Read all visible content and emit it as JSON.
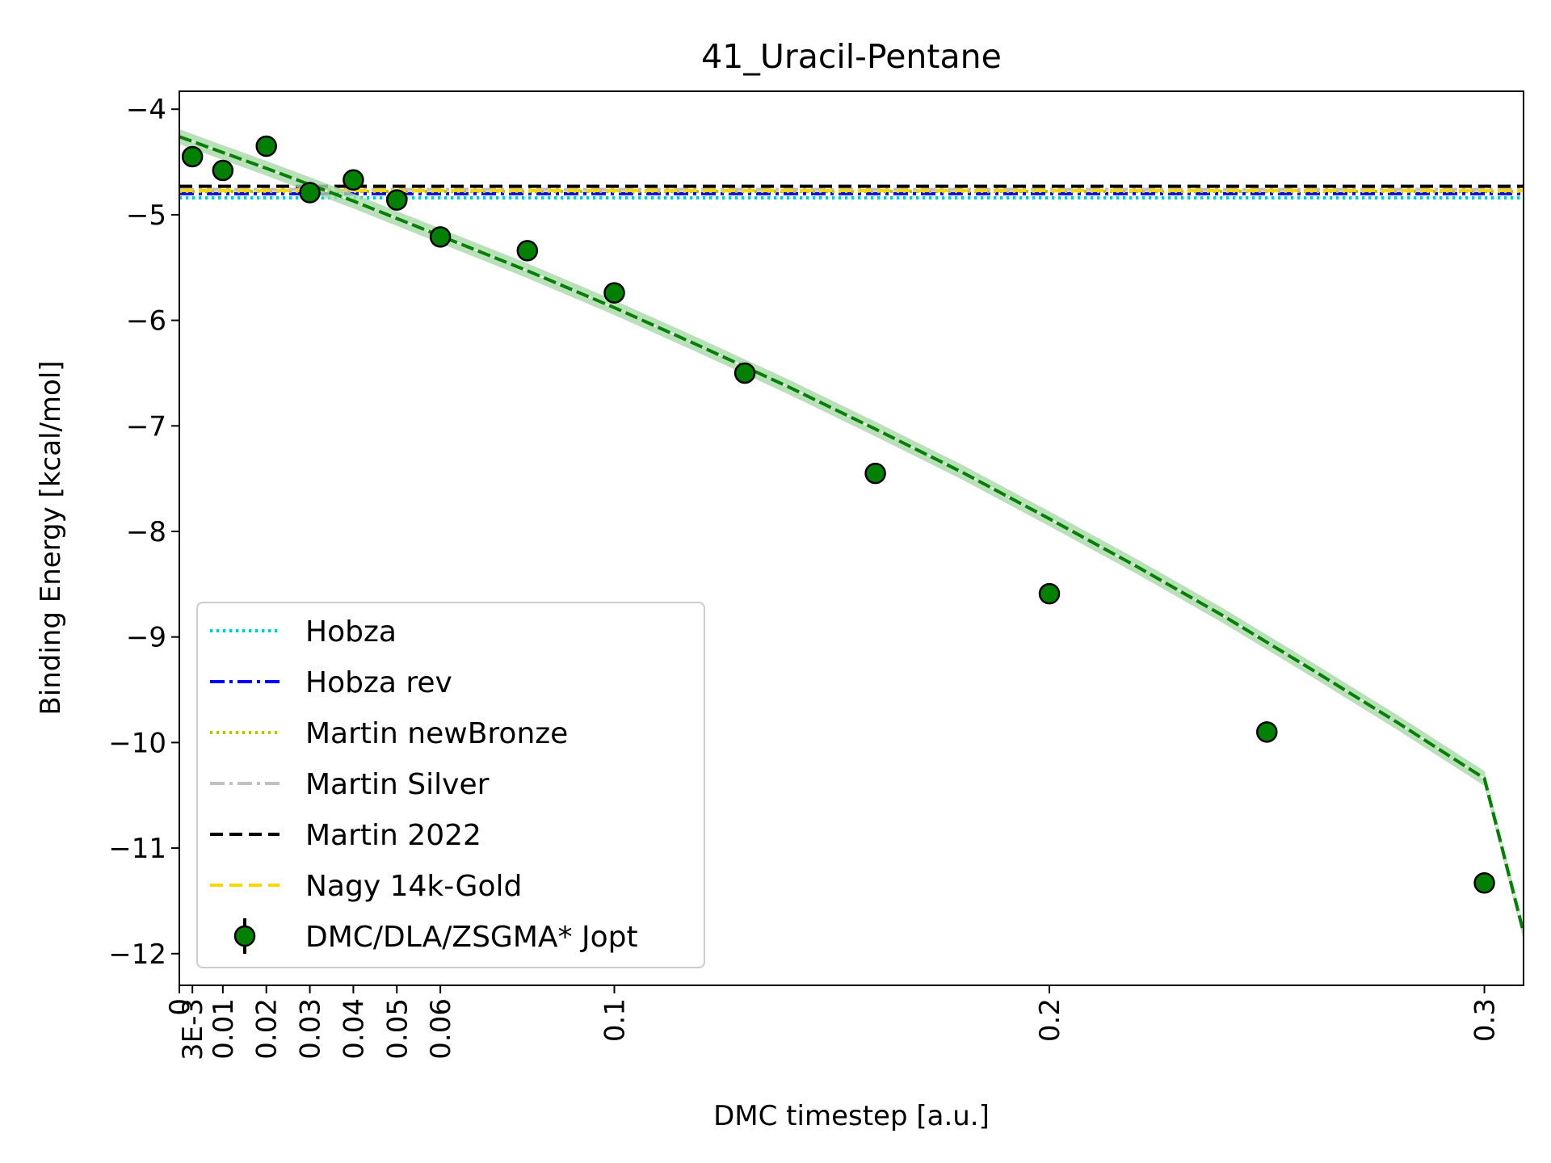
{
  "chart_data": {
    "type": "scatter",
    "title": "41_Uracil-Pentane",
    "xlabel": "DMC timestep [a.u.]",
    "ylabel": "Binding Energy [kcal/mol]",
    "xlim": [
      0,
      0.309
    ],
    "ylim": [
      -12.3,
      -3.83
    ],
    "grid": false,
    "legend_position": "lower-left",
    "x_ticks": [
      {
        "value": 0,
        "label": "0"
      },
      {
        "value": 0.003,
        "label": "3E-3"
      },
      {
        "value": 0.01,
        "label": "0.01"
      },
      {
        "value": 0.02,
        "label": "0.02"
      },
      {
        "value": 0.03,
        "label": "0.03"
      },
      {
        "value": 0.04,
        "label": "0.04"
      },
      {
        "value": 0.05,
        "label": "0.05"
      },
      {
        "value": 0.06,
        "label": "0.06"
      },
      {
        "value": 0.1,
        "label": "0.1"
      },
      {
        "value": 0.2,
        "label": "0.2"
      },
      {
        "value": 0.3,
        "label": "0.3"
      }
    ],
    "y_ticks": [
      {
        "value": -4,
        "label": "−4"
      },
      {
        "value": -5,
        "label": "−5"
      },
      {
        "value": -6,
        "label": "−6"
      },
      {
        "value": -7,
        "label": "−7"
      },
      {
        "value": -8,
        "label": "−8"
      },
      {
        "value": -9,
        "label": "−9"
      },
      {
        "value": -10,
        "label": "−10"
      },
      {
        "value": -11,
        "label": "−11"
      },
      {
        "value": -12,
        "label": "−12"
      }
    ],
    "reference_lines": [
      {
        "name": "Hobza",
        "value": -4.84,
        "color": "#00c8c8",
        "style": "dotted"
      },
      {
        "name": "Hobza rev",
        "value": -4.8,
        "color": "#0000ff",
        "style": "dashdot"
      },
      {
        "name": "Martin newBronze",
        "value": -4.78,
        "color": "#bfbf00",
        "style": "dotted"
      },
      {
        "name": "Martin Silver",
        "value": -4.76,
        "color": "#c0c0c0",
        "style": "dashdot"
      },
      {
        "name": "Martin 2022",
        "value": -4.73,
        "color": "#000000",
        "style": "dashed"
      },
      {
        "name": "Nagy 14k-Gold",
        "value": -4.77,
        "color": "#ffd700",
        "style": "dashed"
      }
    ],
    "series": [
      {
        "name": "DMC/DLA/ZSGMA* Jopt",
        "color": "#008000",
        "x": [
          0.003,
          0.01,
          0.02,
          0.03,
          0.04,
          0.05,
          0.06,
          0.08,
          0.1,
          0.13,
          0.16,
          0.2,
          0.25,
          0.3
        ],
        "y": [
          -4.45,
          -4.58,
          -4.35,
          -4.79,
          -4.67,
          -4.86,
          -5.21,
          -5.34,
          -5.74,
          -6.5,
          -7.45,
          -8.59,
          -9.9,
          -11.33
        ]
      }
    ],
    "fit": {
      "color": "#008000",
      "band_color": "#a8d8a8",
      "x": [
        0,
        0.02,
        0.04,
        0.06,
        0.08,
        0.1,
        0.12,
        0.14,
        0.16,
        0.18,
        0.2,
        0.22,
        0.24,
        0.26,
        0.28,
        0.3,
        0.309
      ],
      "y": [
        -4.26,
        -4.56,
        -4.87,
        -5.2,
        -5.53,
        -5.88,
        -6.25,
        -6.63,
        -7.03,
        -7.44,
        -7.88,
        -8.33,
        -8.8,
        -9.3,
        -9.81,
        -10.34,
        -11.8
      ]
    }
  }
}
